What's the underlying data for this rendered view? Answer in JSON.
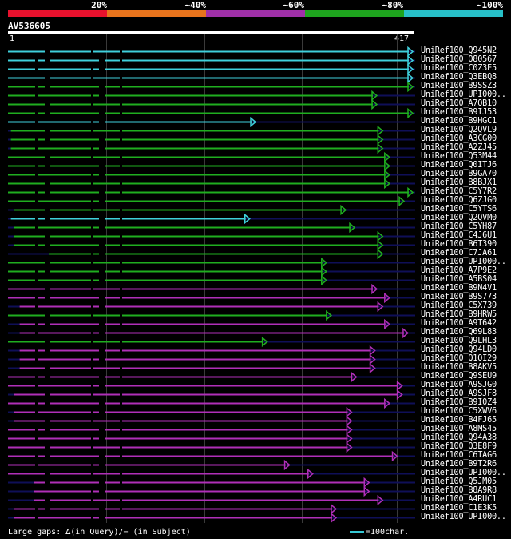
{
  "legend": [
    {
      "label": "20%",
      "color": "#e8112d"
    },
    {
      "label": "~40%",
      "color": "#e8741d"
    },
    {
      "label": "~60%",
      "color": "#a030a8"
    },
    {
      "label": "~80%",
      "color": "#1ea41e"
    },
    {
      "label": "~100%",
      "color": "#27c0c8"
    }
  ],
  "query": {
    "id": "AV536605",
    "start": "1",
    "end": "417"
  },
  "colors": {
    "cyan": "#3fd0dc",
    "green": "#1fae1f",
    "purple": "#b02fb8",
    "navy": "#0f0f58",
    "gap": "#000000"
  },
  "rows": [
    {
      "label": "UniRef100_Q945N2",
      "color": "cyan",
      "s": 0,
      "e": 417,
      "arrow": 1
    },
    {
      "label": "UniRef100_O80567",
      "color": "cyan",
      "s": 0,
      "e": 417,
      "arrow": 1
    },
    {
      "label": "UniRef100_C0Z3E5",
      "color": "cyan",
      "s": 0,
      "e": 417,
      "arrow": 1
    },
    {
      "label": "UniRef100_Q3EBQ8",
      "color": "cyan",
      "s": 0,
      "e": 417,
      "arrow": 1
    },
    {
      "label": "UniRef100_B9SSZ3",
      "color": "green",
      "s": 0,
      "e": 417,
      "arrow": 1
    },
    {
      "label": "UniRef100_UPI000..",
      "color": "green",
      "s": 0,
      "e": 380,
      "arrow": 1
    },
    {
      "label": "UniRef100_A7QB10",
      "color": "green",
      "s": 0,
      "e": 380,
      "arrow": 1
    },
    {
      "label": "UniRef100_B9IJ53",
      "color": "green",
      "s": 0,
      "e": 417,
      "arrow": 1
    },
    {
      "label": "UniRef100_B9HGC1",
      "color": "cyan",
      "s": 0,
      "e": 255,
      "arrow": 1
    },
    {
      "label": "UniRef100_Q2QVL9",
      "color": "green",
      "s": 3,
      "e": 386,
      "arrow": 1
    },
    {
      "label": "UniRef100_A3CG00",
      "color": "green",
      "s": 3,
      "e": 386,
      "arrow": 1
    },
    {
      "label": "UniRef100_A2ZJ45",
      "color": "green",
      "s": 3,
      "e": 386,
      "arrow": 1
    },
    {
      "label": "UniRef100_Q53M44",
      "color": "green",
      "s": 0,
      "e": 393,
      "arrow": 1
    },
    {
      "label": "UniRef100_Q0ITJ6",
      "color": "green",
      "s": 0,
      "e": 393,
      "arrow": 1
    },
    {
      "label": "UniRef100_B9GA70",
      "color": "green",
      "s": 0,
      "e": 393,
      "arrow": 1
    },
    {
      "label": "UniRef100_B8BJX1",
      "color": "green",
      "s": 0,
      "e": 393,
      "arrow": 1
    },
    {
      "label": "UniRef100_C5Y7R2",
      "color": "green",
      "s": 0,
      "e": 417,
      "arrow": 1
    },
    {
      "label": "UniRef100_Q6ZJG0",
      "color": "green",
      "s": 0,
      "e": 408,
      "arrow": 1
    },
    {
      "label": "UniRef100_C5YTS6",
      "color": "green",
      "s": 6,
      "e": 348,
      "arrow": 1
    },
    {
      "label": "UniRef100_Q2QVM0",
      "color": "cyan",
      "s": 3,
      "e": 249,
      "arrow": 1
    },
    {
      "label": "UniRef100_C5YH87",
      "color": "green",
      "s": 6,
      "e": 357,
      "arrow": 1
    },
    {
      "label": "UniRef100_C4J6U1",
      "color": "green",
      "s": 6,
      "e": 386,
      "arrow": 1
    },
    {
      "label": "UniRef100_B6T390",
      "color": "green",
      "s": 6,
      "e": 386,
      "arrow": 1
    },
    {
      "label": "UniRef100_C7JA61",
      "color": "green",
      "s": 42,
      "e": 386,
      "arrow": 1
    },
    {
      "label": "UniRef100_UPI000..",
      "color": "green",
      "s": 0,
      "e": 328,
      "arrow": 1
    },
    {
      "label": "UniRef100_A7P9E2",
      "color": "green",
      "s": 0,
      "e": 328,
      "arrow": 1
    },
    {
      "label": "UniRef100_A5BS04",
      "color": "green",
      "s": 0,
      "e": 328,
      "arrow": 1
    },
    {
      "label": "UniRef100_B9N4V1",
      "color": "purple",
      "s": 0,
      "e": 380,
      "arrow": 1
    },
    {
      "label": "UniRef100_B9S773",
      "color": "purple",
      "s": 0,
      "e": 393,
      "arrow": 1
    },
    {
      "label": "UniRef100_C5X739",
      "color": "purple",
      "s": 12,
      "e": 386,
      "arrow": 1
    },
    {
      "label": "UniRef100_B9HRW5",
      "color": "green",
      "s": 0,
      "e": 333,
      "arrow": 1
    },
    {
      "label": "UniRef100_A9T642",
      "color": "purple",
      "s": 12,
      "e": 393,
      "arrow": 1
    },
    {
      "label": "UniRef100_Q69L83",
      "color": "purple",
      "s": 12,
      "e": 412,
      "arrow": 1
    },
    {
      "label": "UniRef100_Q9LHL3",
      "color": "green",
      "s": 0,
      "e": 267,
      "arrow": 1
    },
    {
      "label": "UniRef100_Q94LD0",
      "color": "purple",
      "s": 12,
      "e": 378,
      "arrow": 1
    },
    {
      "label": "UniRef100_Q1QI29",
      "color": "purple",
      "s": 12,
      "e": 378,
      "arrow": 1
    },
    {
      "label": "UniRef100_B8AKV5",
      "color": "purple",
      "s": 12,
      "e": 378,
      "arrow": 1
    },
    {
      "label": "UniRef100_Q9SEU9",
      "color": "purple",
      "s": 0,
      "e": 359,
      "arrow": 1
    },
    {
      "label": "UniRef100_A9SJG0",
      "color": "purple",
      "s": 0,
      "e": 406,
      "arrow": 1
    },
    {
      "label": "UniRef100_A9SJF8",
      "color": "purple",
      "s": 6,
      "e": 406,
      "arrow": 1
    },
    {
      "label": "UniRef100_B9I0Z4",
      "color": "purple",
      "s": 0,
      "e": 393,
      "arrow": 1
    },
    {
      "label": "UniRef100_C5XWV6",
      "color": "purple",
      "s": 6,
      "e": 354,
      "arrow": 1
    },
    {
      "label": "UniRef100_B4FJ65",
      "color": "purple",
      "s": 6,
      "e": 354,
      "arrow": 1
    },
    {
      "label": "UniRef100_A8MS45",
      "color": "purple",
      "s": 0,
      "e": 354,
      "arrow": 1
    },
    {
      "label": "UniRef100_Q94A38",
      "color": "purple",
      "s": 0,
      "e": 354,
      "arrow": 1
    },
    {
      "label": "UniRef100_Q3E8F9",
      "color": "purple",
      "s": 0,
      "e": 354,
      "arrow": 1
    },
    {
      "label": "UniRef100_C6TAG6",
      "color": "purple",
      "s": 0,
      "e": 401,
      "arrow": 1
    },
    {
      "label": "UniRef100_B9T2R6",
      "color": "purple",
      "s": 0,
      "e": 290,
      "arrow": 1
    },
    {
      "label": "UniRef100_UPI000..",
      "color": "purple",
      "s": 0,
      "e": 314,
      "arrow": 1
    },
    {
      "label": "UniRef100_Q5JM05",
      "color": "purple",
      "s": 27,
      "e": 372,
      "arrow": 1
    },
    {
      "label": "UniRef100_B8A9R8",
      "color": "purple",
      "s": 27,
      "e": 372,
      "arrow": 1
    },
    {
      "label": "UniRef100_A4RUC1",
      "color": "purple",
      "s": 27,
      "e": 386,
      "arrow": 1
    },
    {
      "label": "UniRef100_C1E3K5",
      "color": "purple",
      "s": 6,
      "e": 338,
      "arrow": 1
    },
    {
      "label": "UniRef100_UPI000..",
      "color": "purple",
      "s": 6,
      "e": 338,
      "arrow": 1
    }
  ],
  "footer": {
    "gaps_text": "Large gaps: ∆(in Query)/− (in Subject)",
    "scale_text": "=100char."
  }
}
